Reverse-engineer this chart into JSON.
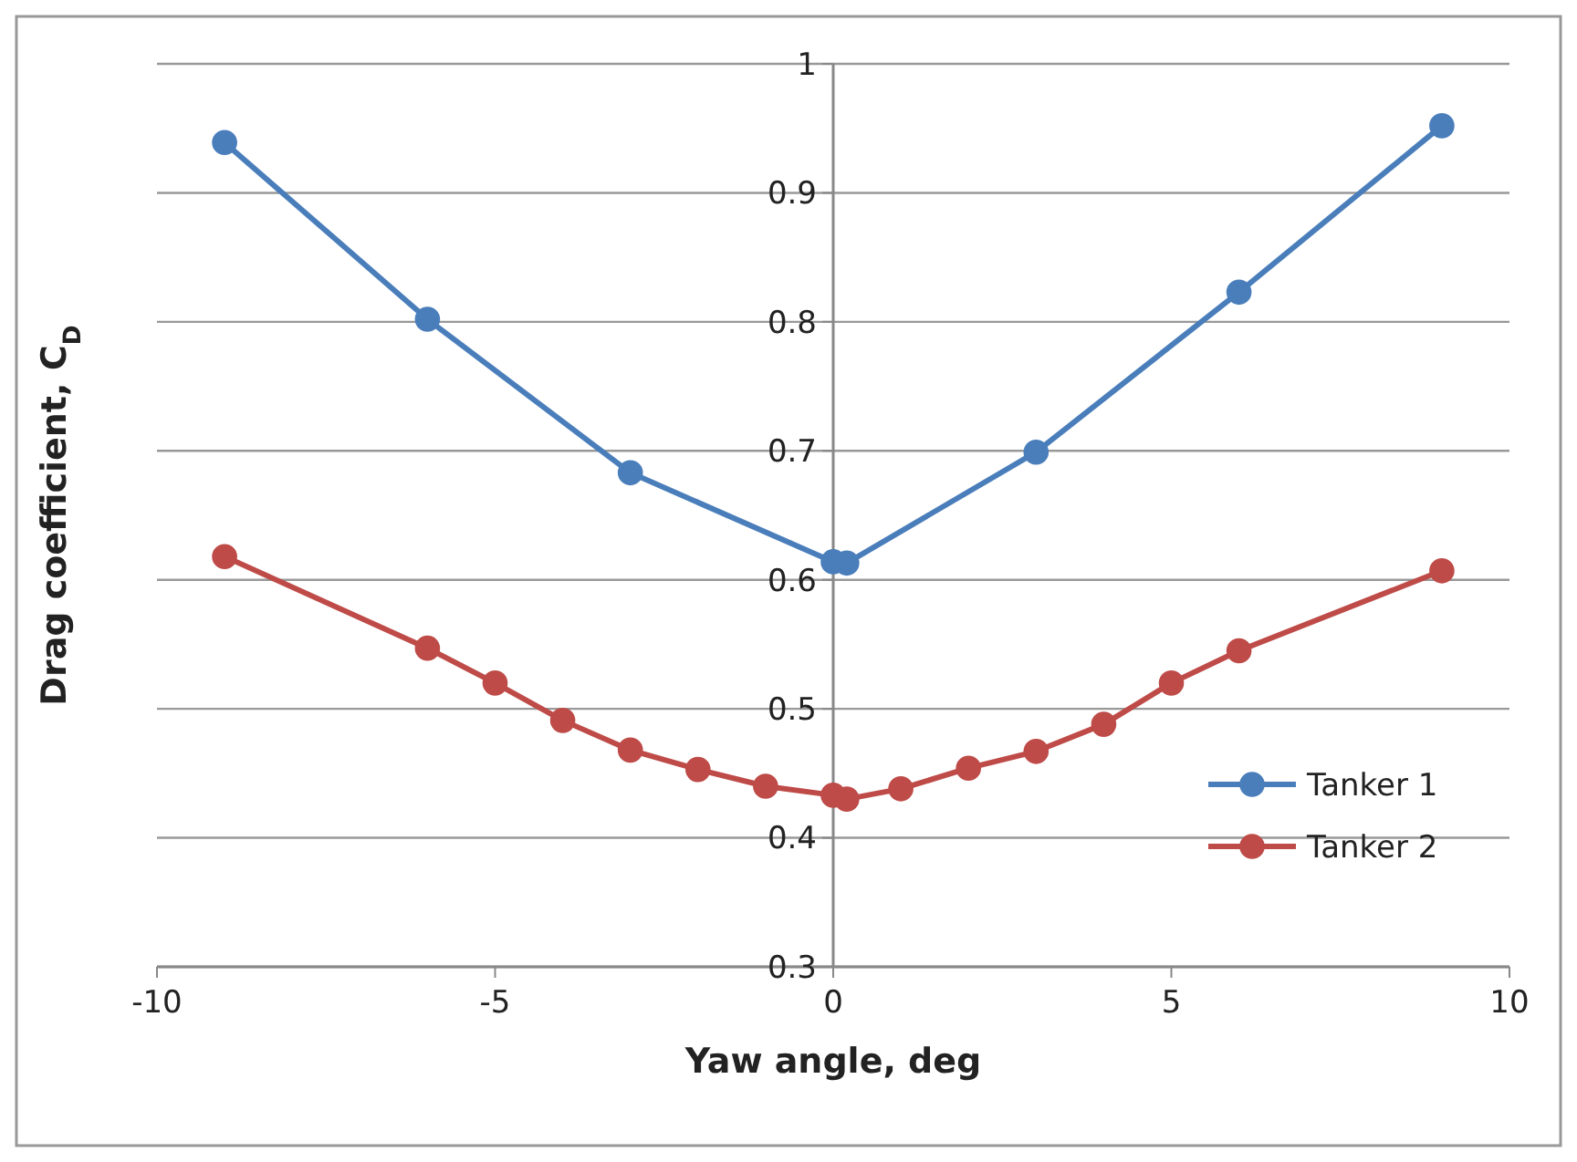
{
  "chart_data": {
    "type": "line",
    "xlabel": "Yaw angle, deg",
    "ylabel": "Drag coefficient, C$_{D}$",
    "xlim": [
      -10,
      10
    ],
    "xticks": [
      -10,
      -5,
      0,
      5,
      10
    ],
    "ylim": [
      0.3,
      1
    ],
    "yticks": [
      0.3,
      0.4,
      0.5,
      0.6,
      0.7,
      0.8,
      0.9,
      1
    ],
    "grid": "y",
    "legend": "bottom right",
    "marker": "circle",
    "line_style": "solid",
    "series": [
      {
        "name": "Tanker 1",
        "color": "#4a7ebb",
        "x": [
          -9,
          -6,
          -3,
          0,
          0.2,
          3,
          6,
          9
        ],
        "values": [
          0.939,
          0.802,
          0.683,
          0.614,
          0.613,
          0.699,
          0.823,
          0.952
        ]
      },
      {
        "name": "Tanker 2",
        "color": "#be4b48",
        "x": [
          -9,
          -6,
          -5,
          -4,
          -3,
          -2,
          -1,
          0,
          0.2,
          1,
          2,
          3,
          4,
          5,
          6,
          9
        ],
        "values": [
          0.618,
          0.547,
          0.52,
          0.491,
          0.468,
          0.453,
          0.44,
          0.433,
          0.43,
          0.438,
          0.454,
          0.467,
          0.488,
          0.52,
          0.545,
          0.607
        ]
      }
    ]
  }
}
